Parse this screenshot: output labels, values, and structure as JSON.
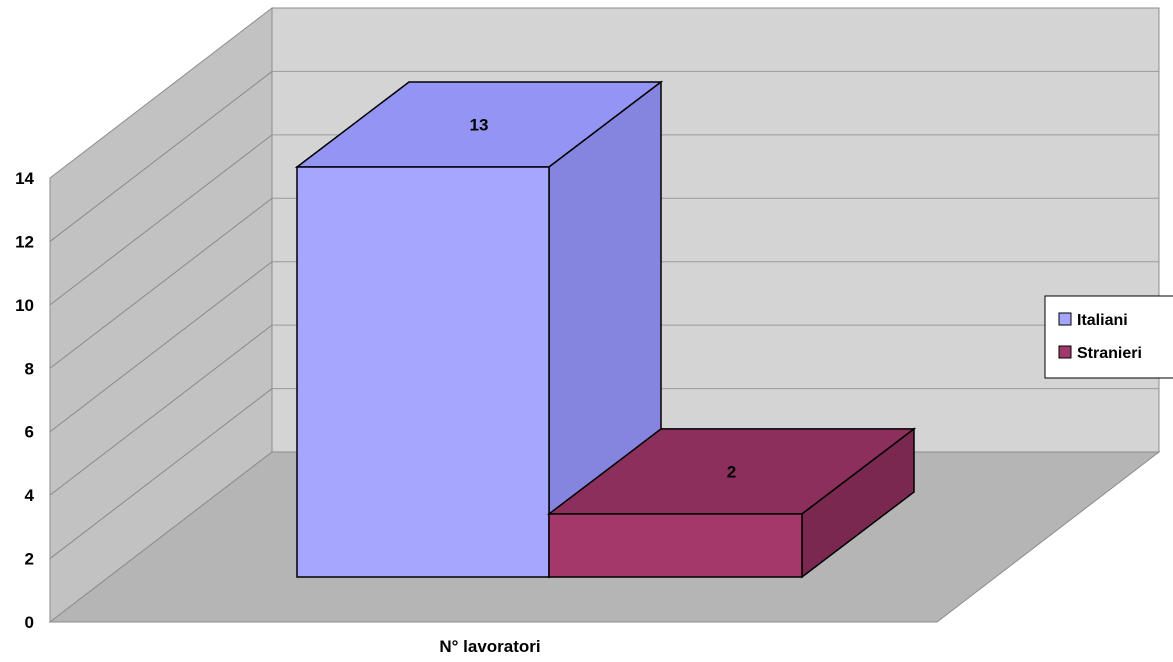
{
  "chart_data": {
    "type": "bar",
    "categories": [
      "N° lavoratori"
    ],
    "xlabel": "N° lavoratori",
    "series": [
      {
        "name": "Italiani",
        "values": [
          13
        ]
      },
      {
        "name": "Stranieri",
        "values": [
          2
        ]
      }
    ],
    "data_labels": [
      "13",
      "2"
    ],
    "ylim": [
      0,
      14
    ],
    "yticks": [
      "0",
      "2",
      "4",
      "6",
      "8",
      "10",
      "12",
      "14"
    ],
    "grid": true,
    "three_d": true,
    "legend": "right"
  },
  "colors": {
    "italiani_front": "#a6a6ff",
    "italiani_top": "#9494f5",
    "italiani_side": "#8585e0",
    "stranieri_front": "#a3386b",
    "stranieri_top": "#8c2f5c",
    "stranieri_side": "#7a2850",
    "wall": "#d4d4d4",
    "side_wall": "#c2c2c2",
    "floor": "#b5b5b5"
  }
}
